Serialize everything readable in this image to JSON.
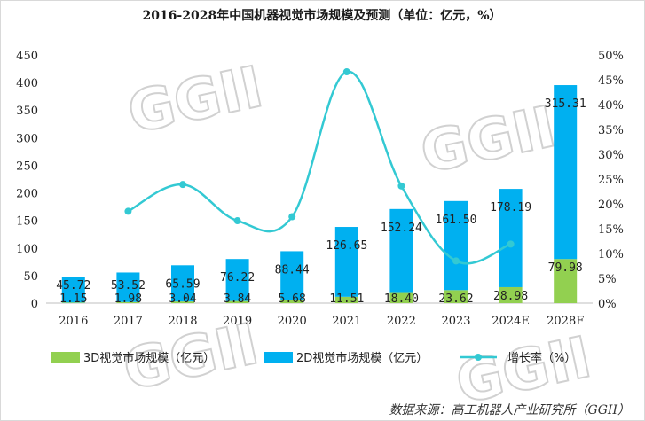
{
  "chart_data": {
    "type": "bar",
    "stacked": true,
    "title": "2016-2028年中国机器视觉市场规模及预测（单位：亿元，%）",
    "categories": [
      "2016",
      "2017",
      "2018",
      "2019",
      "2020",
      "2021",
      "2022",
      "2023",
      "2024E",
      "2028F"
    ],
    "series": [
      {
        "name": "3D视觉市场规模（亿元）",
        "kind": "bar",
        "axis": "left",
        "values": [
          1.15,
          1.98,
          3.04,
          3.84,
          5.68,
          11.51,
          18.4,
          23.62,
          28.98,
          79.98
        ],
        "labels": [
          "1.15",
          "1.98",
          "3.04",
          "3.84",
          "5.68",
          "11.51",
          "18.40",
          "23.62",
          "28.98",
          "79.98"
        ],
        "color": "#92d050"
      },
      {
        "name": "2D视觉市场规模（亿元）",
        "kind": "bar",
        "axis": "left",
        "values": [
          45.72,
          53.52,
          65.59,
          76.22,
          88.44,
          126.65,
          152.24,
          161.5,
          178.19,
          315.31
        ],
        "labels": [
          "45.72",
          "53.52",
          "65.59",
          "76.22",
          "88.44",
          "126.65",
          "152.24",
          "161.50",
          "178.19",
          "315.31"
        ],
        "color": "#00b0f0"
      },
      {
        "name": "增长率（%）",
        "kind": "line",
        "axis": "right",
        "values": [
          null,
          18.5,
          23.9,
          16.6,
          17.4,
          46.6,
          23.6,
          8.5,
          11.9,
          null
        ],
        "color": "#33c9d3"
      }
    ],
    "y_left": {
      "min": 0,
      "max": 450,
      "step": 50,
      "ticks": [
        "0",
        "50",
        "100",
        "150",
        "200",
        "250",
        "300",
        "350",
        "400",
        "450"
      ]
    },
    "y_right": {
      "min": 0,
      "max": 50,
      "step": 5,
      "ticks": [
        "0%",
        "5%",
        "10%",
        "15%",
        "20%",
        "25%",
        "30%",
        "35%",
        "40%",
        "45%",
        "50%"
      ]
    },
    "grid": false,
    "legend_position": "bottom"
  },
  "watermark": "GGII",
  "source": "数据来源：高工机器人产业研究所（GGII）"
}
